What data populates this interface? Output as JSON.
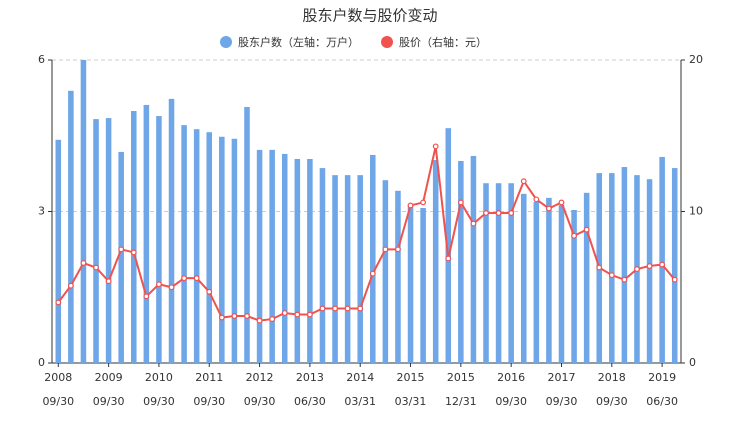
{
  "chart_data": {
    "type": "bar-line",
    "title": "股东户数与股价变动",
    "categories": [
      [
        "2008",
        "09/30"
      ],
      null,
      null,
      null,
      [
        "2009",
        "09/30"
      ],
      null,
      null,
      null,
      [
        "2010",
        "09/30"
      ],
      null,
      null,
      null,
      [
        "2011",
        "09/30"
      ],
      null,
      null,
      null,
      [
        "2012",
        "09/30"
      ],
      null,
      null,
      null,
      [
        "2013",
        "06/30"
      ],
      null,
      null,
      null,
      [
        "2014",
        "03/31"
      ],
      null,
      null,
      null,
      [
        "2015",
        "03/31"
      ],
      null,
      null,
      null,
      [
        "2015",
        "12/31"
      ],
      null,
      null,
      null,
      [
        "2016",
        "09/30"
      ],
      null,
      null,
      null,
      [
        "2017",
        "09/30"
      ],
      null,
      null,
      null,
      [
        "2018",
        "09/30"
      ],
      null,
      null,
      null,
      [
        "2019",
        "06/30"
      ],
      null
    ],
    "series": [
      {
        "name": "股东户数（左轴：万户）",
        "type": "bar",
        "color": "#6ea6e8",
        "values": [
          4.42,
          5.39,
          6.0,
          4.83,
          4.85,
          4.18,
          4.99,
          5.11,
          4.89,
          5.23,
          4.71,
          4.63,
          4.57,
          4.48,
          4.44,
          5.07,
          4.22,
          4.22,
          4.14,
          4.04,
          4.04,
          3.86,
          3.72,
          3.72,
          3.72,
          4.12,
          3.62,
          3.41,
          3.15,
          3.07,
          4.02,
          4.65,
          4.0,
          4.1,
          3.56,
          3.56,
          3.56,
          3.35,
          3.19,
          3.27,
          3.13,
          3.03,
          3.37,
          3.76,
          3.76,
          3.88,
          3.72,
          3.64,
          4.08,
          3.86
        ]
      },
      {
        "name": "股价（右轴：元）",
        "type": "line",
        "axis": "y2",
        "color": "#f0524f",
        "values": [
          4.0,
          5.1,
          6.6,
          6.3,
          5.4,
          7.5,
          7.3,
          4.4,
          5.2,
          5.0,
          5.6,
          5.6,
          4.7,
          3.0,
          3.1,
          3.1,
          2.8,
          2.9,
          3.3,
          3.2,
          3.2,
          3.6,
          3.6,
          3.6,
          3.6,
          5.9,
          7.5,
          7.5,
          10.4,
          10.6,
          14.3,
          6.9,
          10.6,
          9.2,
          9.9,
          9.9,
          9.9,
          12.0,
          10.8,
          10.2,
          10.6,
          8.4,
          8.8,
          6.3,
          5.8,
          5.5,
          6.2,
          6.4,
          6.5,
          5.5
        ]
      }
    ],
    "ylim": [
      0,
      6
    ],
    "yticks": [
      0,
      3,
      6
    ],
    "y2lim": [
      0,
      20
    ],
    "y2ticks": [
      0,
      10,
      20
    ],
    "grid": true,
    "legend": "top"
  }
}
